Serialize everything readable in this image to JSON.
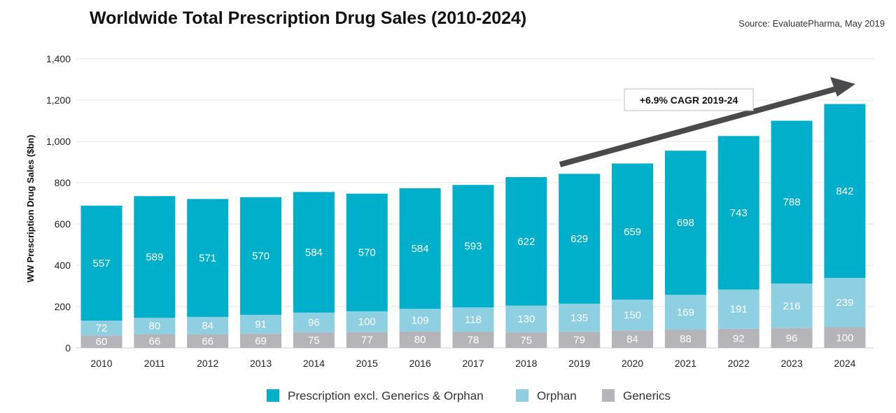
{
  "chart_data": {
    "type": "bar",
    "stacked": true,
    "title": "Worldwide Total Prescription Drug Sales (2010-2024)",
    "source": "Source: EvaluatePharma, May 2019",
    "xlabel": "",
    "ylabel": "WW Prescription Drug Sales ($bn)",
    "ylim": [
      0,
      1400
    ],
    "yticks": [
      0,
      200,
      400,
      600,
      800,
      "1,000",
      "1,200",
      "1,400"
    ],
    "categories": [
      "2010",
      "2011",
      "2012",
      "2013",
      "2014",
      "2015",
      "2016",
      "2017",
      "2018",
      "2019",
      "2020",
      "2021",
      "2022",
      "2023",
      "2024"
    ],
    "series": [
      {
        "name": "Generics",
        "color": "#b5b4b9",
        "values": [
          60,
          66,
          66,
          69,
          75,
          77,
          80,
          78,
          75,
          79,
          84,
          88,
          92,
          96,
          100
        ]
      },
      {
        "name": "Orphan",
        "color": "#8ecfe2",
        "values": [
          72,
          80,
          84,
          91,
          96,
          100,
          109,
          118,
          130,
          135,
          150,
          169,
          191,
          216,
          239
        ]
      },
      {
        "name": "Prescription excl. Generics & Orphan",
        "color": "#00afc9",
        "values": [
          557,
          589,
          571,
          570,
          584,
          570,
          584,
          593,
          622,
          629,
          659,
          698,
          743,
          788,
          842
        ]
      }
    ],
    "legend": [
      "Prescription excl. Generics & Orphan",
      "Orphan",
      "Generics"
    ],
    "legend_position": "bottom",
    "annotation": "+6.9% CAGR 2019-24"
  }
}
